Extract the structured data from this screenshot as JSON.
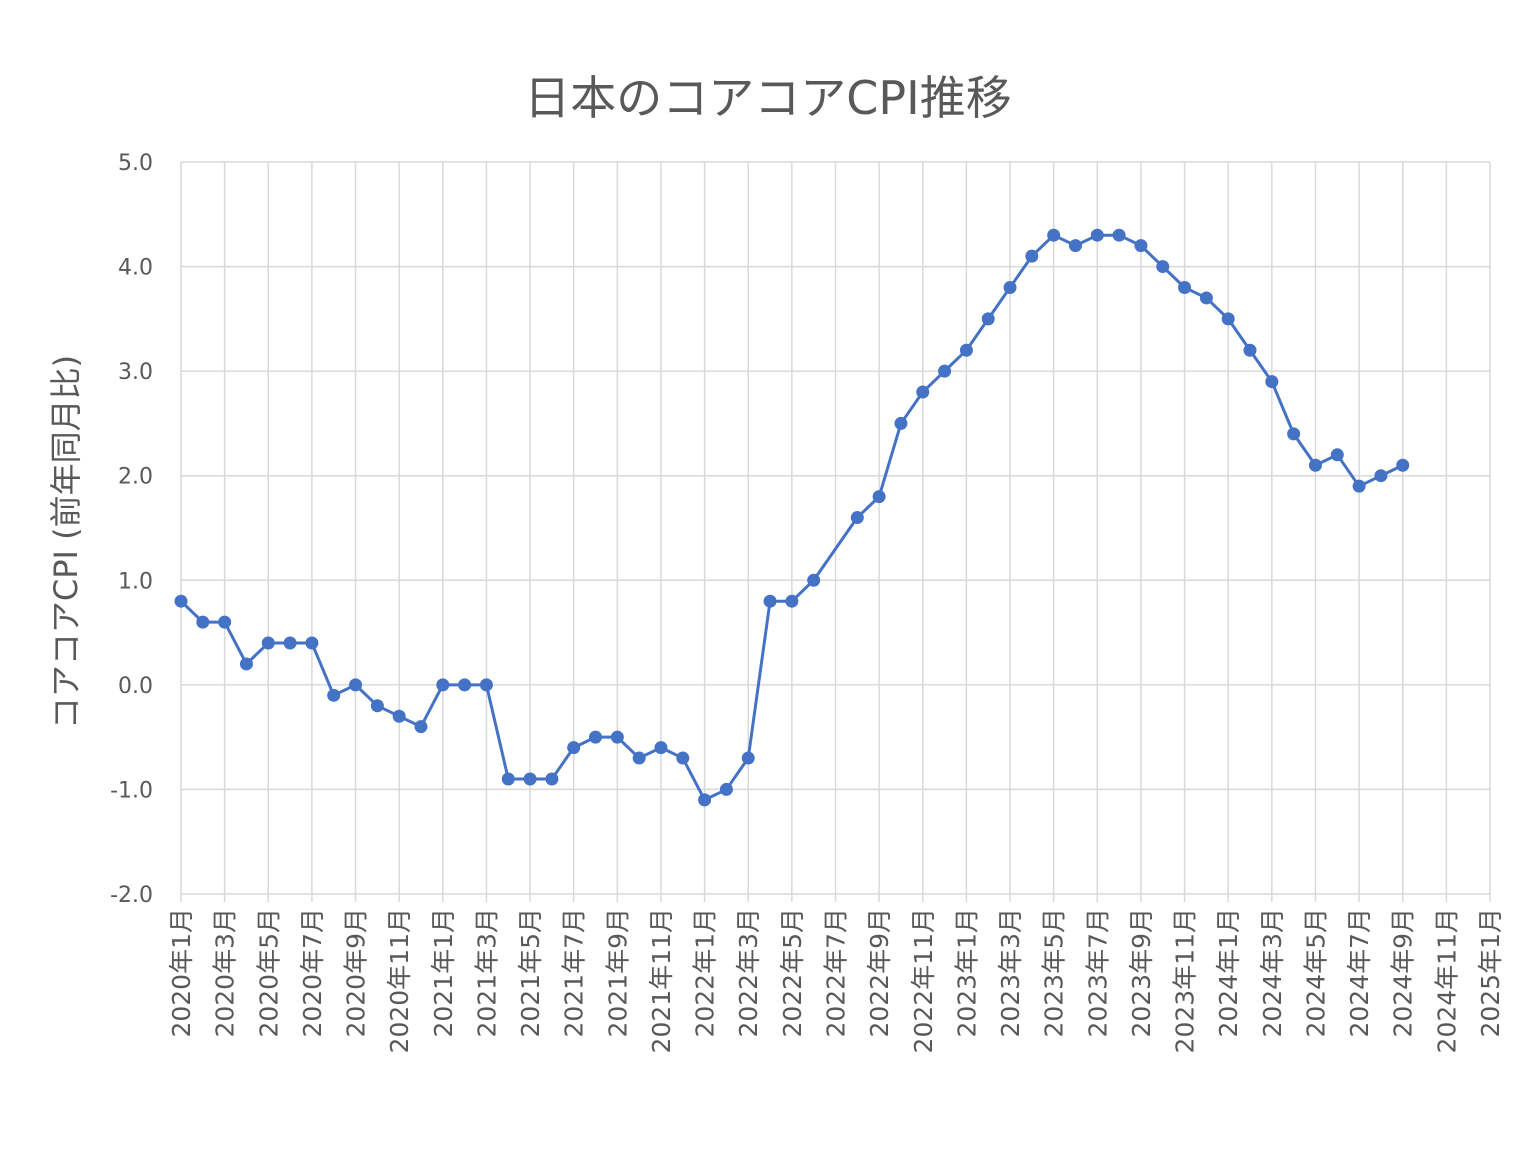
{
  "chart_data": {
    "type": "line",
    "title": "日本のコアコアCPI推移",
    "xlabel": "",
    "ylabel": "コアコアCPI (前年同月比)",
    "ylim": [
      -2.0,
      5.0
    ],
    "yticks": [
      "-2.0",
      "-1.0",
      "0.0",
      "1.0",
      "2.0",
      "3.0",
      "4.0",
      "5.0"
    ],
    "grid": true,
    "legend": "none",
    "color": "#4472C4",
    "x_tick_labels": [
      "2020年1月",
      "2020年3月",
      "2020年5月",
      "2020年7月",
      "2020年9月",
      "2020年11月",
      "2021年1月",
      "2021年3月",
      "2021年5月",
      "2021年7月",
      "2021年9月",
      "2021年11月",
      "2022年1月",
      "2022年3月",
      "2022年5月",
      "2022年7月",
      "2022年9月",
      "2022年11月",
      "2023年1月",
      "2023年3月",
      "2023年5月",
      "2023年7月",
      "2023年9月",
      "2023年11月",
      "2024年1月",
      "2024年3月",
      "2024年5月",
      "2024年7月",
      "2024年9月",
      "2024年11月",
      "2025年1月"
    ],
    "x": [
      "2020-01",
      "2020-02",
      "2020-03",
      "2020-04",
      "2020-05",
      "2020-06",
      "2020-07",
      "2020-08",
      "2020-09",
      "2020-10",
      "2020-11",
      "2020-12",
      "2021-01",
      "2021-02",
      "2021-03",
      "2021-04",
      "2021-05",
      "2021-06",
      "2021-07",
      "2021-08",
      "2021-09",
      "2021-10",
      "2021-11",
      "2021-12",
      "2022-01",
      "2022-02",
      "2022-03",
      "2022-04",
      "2022-05",
      "2022-06",
      "2022-07",
      "2022-08",
      "2022-09",
      "2022-10",
      "2022-11",
      "2022-12",
      "2023-01",
      "2023-02",
      "2023-03",
      "2023-04",
      "2023-05",
      "2023-06",
      "2023-07",
      "2023-08",
      "2023-09",
      "2023-10",
      "2023-11",
      "2023-12",
      "2024-01",
      "2024-02",
      "2024-03",
      "2024-04",
      "2024-05",
      "2024-06",
      "2024-07",
      "2024-08",
      "2024-09"
    ],
    "values": [
      0.8,
      0.6,
      0.6,
      0.2,
      0.4,
      0.4,
      0.4,
      -0.1,
      0.0,
      -0.2,
      -0.3,
      -0.4,
      0.0,
      0.0,
      0.0,
      -0.9,
      -0.9,
      -0.9,
      -0.6,
      -0.5,
      -0.5,
      -0.7,
      -0.6,
      -0.7,
      -1.1,
      -1.0,
      -0.7,
      0.8,
      0.8,
      1.0,
      null,
      1.6,
      1.8,
      2.5,
      2.8,
      3.0,
      3.2,
      3.5,
      3.8,
      4.1,
      4.3,
      4.2,
      4.3,
      4.3,
      4.2,
      4.0,
      3.8,
      3.7,
      3.5,
      3.2,
      2.9,
      2.4,
      2.1,
      2.2,
      1.9,
      2.0,
      2.1
    ]
  }
}
